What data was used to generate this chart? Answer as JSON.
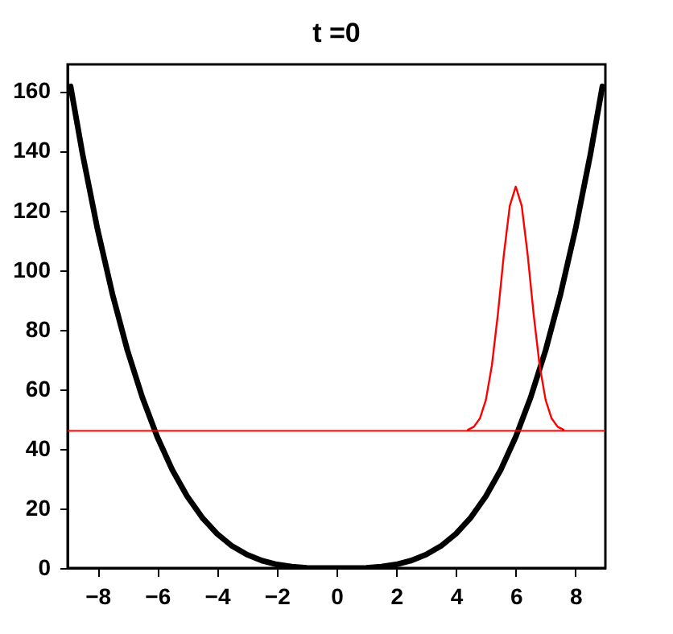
{
  "chart_data": {
    "type": "line",
    "title": "t =0",
    "xlim": [
      -9,
      9
    ],
    "xticks": [
      -8,
      -6,
      -4,
      -2,
      0,
      2,
      4,
      6,
      8
    ],
    "ylim": [
      0,
      169
    ],
    "yticks": [
      0,
      20,
      40,
      60,
      80,
      100,
      120,
      140,
      160
    ],
    "grid": false,
    "marker": "none",
    "line_style": "solid",
    "series": [
      {
        "color": "#000000",
        "x": [
          -8.9,
          -8.5,
          -8,
          -7.5,
          -7,
          -6.5,
          -6,
          -5.5,
          -5,
          -4.5,
          -4,
          -3.5,
          -3,
          -2.5,
          -2,
          -1.5,
          -1,
          -0.5,
          0,
          0.5,
          1,
          1.5,
          2,
          2.5,
          3,
          3.5,
          4,
          4.5,
          5,
          5.5,
          6,
          6.5,
          7,
          7.5,
          8,
          8.5,
          8.9
        ],
        "values": [
          161.6,
          138.9,
          113.7,
          91.9,
          73.1,
          57.3,
          44.0,
          33.0,
          24.1,
          17.0,
          11.5,
          7.4,
          4.5,
          2.5,
          1.2,
          0.5,
          0.1,
          0,
          0,
          0,
          0.1,
          0.5,
          1.2,
          2.5,
          4.5,
          7.4,
          11.5,
          17.0,
          24.1,
          33.0,
          44.0,
          57.3,
          73.1,
          91.9,
          113.7,
          138.9,
          161.6
        ]
      },
      {
        "color": "#ff0000",
        "x": [
          4.4,
          4.6,
          4.8,
          5.0,
          5.2,
          5.4,
          5.6,
          5.8,
          6.0,
          6.2,
          6.4,
          6.6,
          6.8,
          7.0,
          7.2,
          7.4,
          7.6
        ],
        "values": [
          46.4,
          47.4,
          50.2,
          56.4,
          67.9,
          85.0,
          105.0,
          121.5,
          128,
          121.5,
          105.0,
          85.0,
          67.9,
          56.4,
          50.2,
          47.4,
          46.4
        ]
      }
    ],
    "ref_lines": [
      {
        "axis": "y",
        "value": 46,
        "color": "#ff0000"
      }
    ]
  }
}
